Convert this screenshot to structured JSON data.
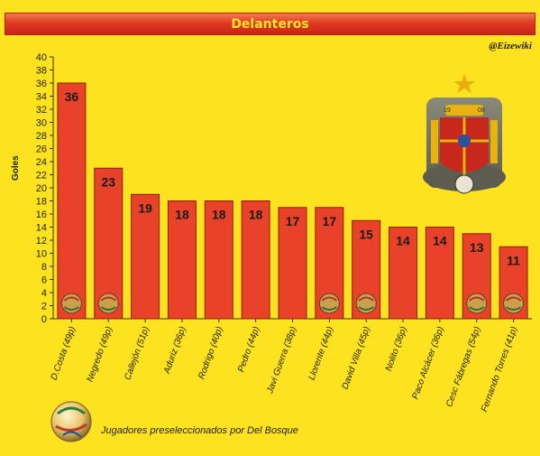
{
  "header": {
    "title": "Delanteros"
  },
  "credit": "@Eizewiki",
  "footer": {
    "note": "Jugadores preseleccionados por Del Bosque"
  },
  "colors": {
    "background": "#fde21f",
    "bar": "#e8422a",
    "bar_outline": "#8a1f10"
  },
  "chart_data": {
    "type": "bar",
    "title": "Delanteros",
    "xlabel": "",
    "ylabel": "Goles",
    "ylim": [
      0,
      40
    ],
    "yticks": [
      0,
      2,
      4,
      6,
      8,
      10,
      12,
      14,
      16,
      18,
      20,
      22,
      24,
      26,
      28,
      30,
      32,
      34,
      36,
      38,
      40
    ],
    "grid": false,
    "categories": [
      "D.Costa (49p)",
      "Negredo (49p)",
      "Callejón (51p)",
      "Aduriz (36p)",
      "Rodrigo (40p)",
      "Pedro (44p)",
      "Javi Guerra (38p)",
      "Llorente (44p)",
      "David Villa (45p)",
      "Nolito (36p)",
      "Paco Alcácer (36p)",
      "Cesc Fábregas (54p)",
      "Fernando Torres (41p)"
    ],
    "values": [
      36,
      23,
      19,
      18,
      18,
      18,
      17,
      17,
      15,
      14,
      14,
      13,
      11
    ],
    "ball_icon_on": [
      true,
      true,
      false,
      false,
      false,
      false,
      false,
      true,
      true,
      false,
      false,
      true,
      true
    ]
  }
}
